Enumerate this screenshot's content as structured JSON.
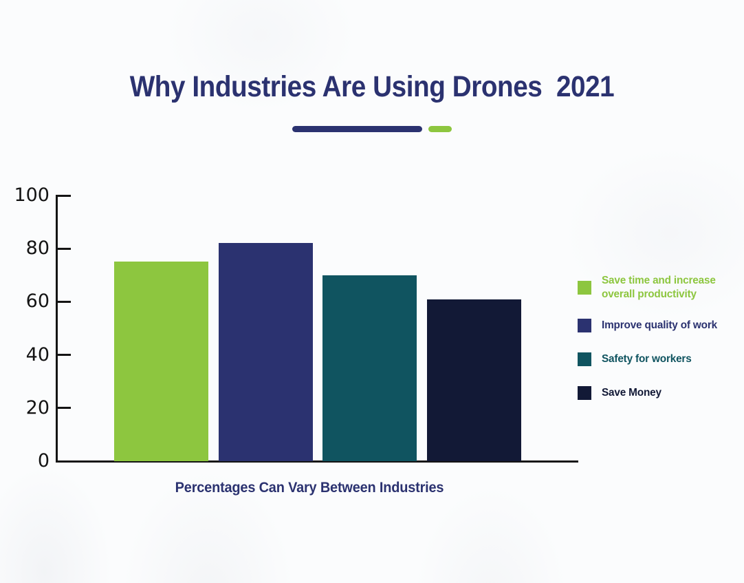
{
  "page": {
    "title": "Why Industries Are Using Drones  2021",
    "caption": "Percentages Can Vary Between Industries"
  },
  "colors": {
    "title_navy": "#2b3270",
    "axis_black": "#141414",
    "background": "#fbfcfd",
    "divider_navy": "#2b3270",
    "divider_green": "#8dc63f"
  },
  "chart_data": {
    "type": "bar",
    "title": "Why Industries Are Using Drones  2021",
    "xlabel": "Percentages Can Vary Between Industries",
    "ylabel": "",
    "categories": [
      "Save time and increase overall productivity",
      "Improve quality of work",
      "Safety for workers",
      "Save Money"
    ],
    "values": [
      75,
      82,
      70,
      61
    ],
    "bar_colors": [
      "#8dc63f",
      "#2b3270",
      "#105460",
      "#121936"
    ],
    "ylim": [
      0,
      100
    ],
    "yticks": [
      0,
      20,
      40,
      60,
      80,
      100
    ],
    "grid": false,
    "legend_position": "right",
    "legend": [
      {
        "label": "Save time and increase\noverall productivity",
        "color": "#8dc63f"
      },
      {
        "label": "Improve quality of work",
        "color": "#2b3270"
      },
      {
        "label": "Safety for workers",
        "color": "#105460"
      },
      {
        "label": "Save Money",
        "color": "#121936"
      }
    ]
  }
}
